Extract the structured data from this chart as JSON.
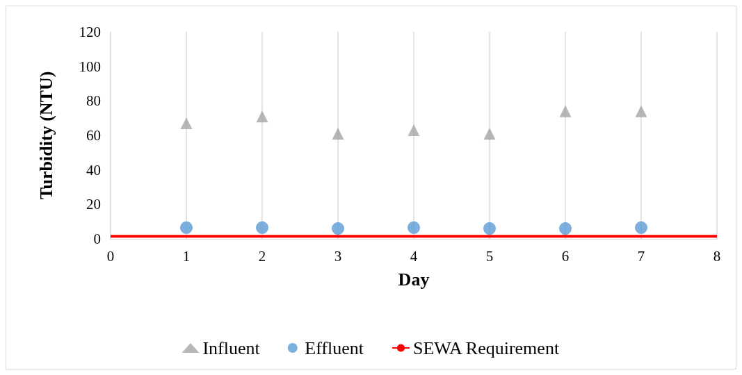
{
  "chart_data": {
    "type": "scatter",
    "xlabel": "Day",
    "ylabel": "Turbidity (NTU)",
    "x": [
      1,
      2,
      3,
      4,
      5,
      6,
      7
    ],
    "series": [
      {
        "name": "Influent",
        "color": "#a5a5a5",
        "marker": "triangle",
        "values": [
          67,
          71,
          61,
          63,
          61,
          74,
          74
        ]
      },
      {
        "name": "Effluent",
        "color": "#5b9bd5",
        "marker": "circle",
        "values": [
          6.5,
          6.5,
          6,
          6.5,
          6,
          6,
          6.5
        ]
      },
      {
        "name": "SEWA Requirement",
        "type": "line",
        "color": "#ff0000",
        "marker": "none",
        "x": [
          0,
          8
        ],
        "values": [
          1.5,
          1.5
        ]
      }
    ],
    "xlim": [
      0,
      8
    ],
    "xticks": [
      0,
      1,
      2,
      3,
      4,
      5,
      6,
      7,
      8
    ],
    "ylim": [
      0,
      120
    ],
    "yticks": [
      0,
      20,
      40,
      60,
      80,
      100,
      120
    ],
    "grid": "x",
    "legend": "bottom"
  }
}
